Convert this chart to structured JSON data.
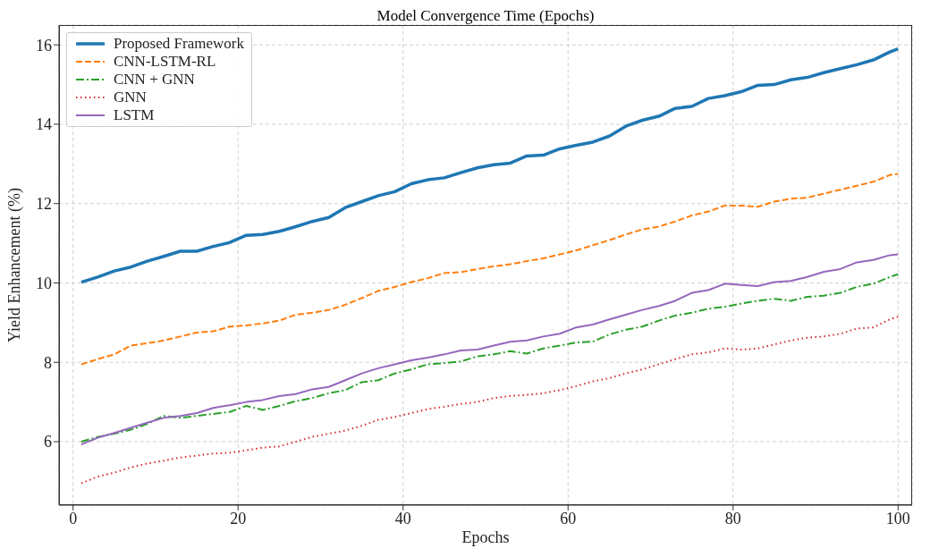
{
  "chart_data": {
    "type": "line",
    "title": "Model Convergence Time (Epochs)",
    "xlabel": "Epochs",
    "ylabel": "Yield Enhancement (%)",
    "x": [
      1,
      3,
      5,
      7,
      9,
      11,
      13,
      15,
      17,
      19,
      21,
      23,
      25,
      27,
      29,
      31,
      33,
      35,
      37,
      39,
      41,
      43,
      45,
      47,
      49,
      51,
      53,
      55,
      57,
      59,
      61,
      63,
      65,
      67,
      69,
      71,
      73,
      75,
      77,
      79,
      81,
      83,
      85,
      87,
      89,
      91,
      93,
      95,
      97,
      99,
      100
    ],
    "series": [
      {
        "name": "Proposed Framework",
        "color": "#1f77b4",
        "line_style": "solid",
        "values": [
          10.02,
          10.15,
          10.3,
          10.4,
          10.55,
          10.67,
          10.8,
          10.8,
          10.92,
          11.02,
          11.2,
          11.22,
          11.3,
          11.42,
          11.55,
          11.65,
          11.9,
          12.05,
          12.2,
          12.3,
          12.5,
          12.6,
          12.65,
          12.78,
          12.9,
          12.98,
          13.02,
          13.2,
          13.22,
          13.38,
          13.47,
          13.55,
          13.7,
          13.95,
          14.1,
          14.2,
          14.4,
          14.45,
          14.65,
          14.72,
          14.82,
          14.98,
          15.0,
          15.12,
          15.18,
          15.3,
          15.4,
          15.5,
          15.62,
          15.82,
          15.9
        ]
      },
      {
        "name": "CNN-LSTM-RL",
        "color": "#ff7f0e",
        "line_style": "dashed",
        "values": [
          7.95,
          8.08,
          8.2,
          8.42,
          8.48,
          8.55,
          8.65,
          8.75,
          8.78,
          8.9,
          8.93,
          8.98,
          9.05,
          9.2,
          9.25,
          9.32,
          9.45,
          9.62,
          9.8,
          9.9,
          10.02,
          10.12,
          10.25,
          10.27,
          10.35,
          10.42,
          10.47,
          10.55,
          10.62,
          10.72,
          10.82,
          10.95,
          11.08,
          11.22,
          11.35,
          11.42,
          11.55,
          11.7,
          11.8,
          11.95,
          11.95,
          11.92,
          12.05,
          12.12,
          12.15,
          12.25,
          12.35,
          12.45,
          12.55,
          12.72,
          12.75
        ]
      },
      {
        "name": "CNN + GNN",
        "color": "#2ca02c",
        "line_style": "dashdot",
        "values": [
          6.0,
          6.12,
          6.2,
          6.3,
          6.45,
          6.65,
          6.6,
          6.65,
          6.7,
          6.75,
          6.9,
          6.8,
          6.9,
          7.02,
          7.1,
          7.22,
          7.3,
          7.5,
          7.55,
          7.72,
          7.82,
          7.95,
          7.98,
          8.02,
          8.15,
          8.2,
          8.28,
          8.22,
          8.35,
          8.42,
          8.5,
          8.52,
          8.7,
          8.82,
          8.9,
          9.05,
          9.18,
          9.25,
          9.35,
          9.4,
          9.48,
          9.55,
          9.6,
          9.55,
          9.65,
          9.68,
          9.75,
          9.9,
          9.98,
          10.15,
          10.22
        ]
      },
      {
        "name": "GNN",
        "color": "#d62728",
        "line_style": "dotted",
        "values": [
          4.95,
          5.12,
          5.22,
          5.35,
          5.45,
          5.52,
          5.6,
          5.65,
          5.7,
          5.72,
          5.78,
          5.85,
          5.88,
          6.0,
          6.12,
          6.2,
          6.28,
          6.4,
          6.55,
          6.62,
          6.72,
          6.82,
          6.88,
          6.95,
          7.0,
          7.1,
          7.15,
          7.18,
          7.22,
          7.3,
          7.4,
          7.52,
          7.6,
          7.72,
          7.82,
          7.95,
          8.08,
          8.2,
          8.25,
          8.35,
          8.32,
          8.35,
          8.45,
          8.55,
          8.62,
          8.65,
          8.72,
          8.85,
          8.88,
          9.08,
          9.15
        ]
      },
      {
        "name": "LSTM",
        "color": "#9467bd",
        "line_style": "solid",
        "values": [
          5.93,
          6.1,
          6.22,
          6.35,
          6.48,
          6.6,
          6.65,
          6.72,
          6.85,
          6.92,
          7.0,
          7.05,
          7.15,
          7.2,
          7.32,
          7.38,
          7.55,
          7.72,
          7.85,
          7.95,
          8.05,
          8.12,
          8.2,
          8.3,
          8.32,
          8.42,
          8.52,
          8.55,
          8.65,
          8.72,
          8.88,
          8.95,
          9.08,
          9.2,
          9.32,
          9.42,
          9.55,
          9.75,
          9.82,
          9.98,
          9.95,
          9.92,
          10.02,
          10.05,
          10.15,
          10.28,
          10.35,
          10.52,
          10.58,
          10.7,
          10.72
        ]
      }
    ],
    "xlim": [
      -1.7,
      101.7
    ],
    "xticks": [
      0,
      20,
      40,
      60,
      80,
      100
    ],
    "ylim": [
      4.4,
      16.5
    ],
    "yticks": [
      6,
      8,
      10,
      12,
      14,
      16
    ],
    "grid": true,
    "legend": "top left",
    "marker": "none"
  }
}
